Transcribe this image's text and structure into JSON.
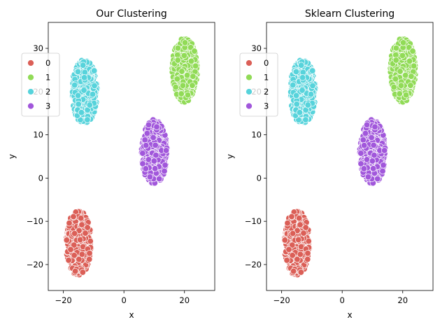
{
  "chart_data": [
    {
      "type": "scatter",
      "title": "Our Clustering",
      "xlabel": "x",
      "ylabel": "y",
      "xlim": [
        -25,
        30
      ],
      "ylim": [
        -26,
        36
      ],
      "xticks": [
        -20,
        0,
        20
      ],
      "yticks": [
        -20,
        -10,
        0,
        10,
        20,
        30
      ],
      "grid": false,
      "legend_position": "upper-left",
      "legend": [
        "0",
        "1",
        "2",
        "3"
      ],
      "clusters": [
        {
          "label": "0",
          "color": "#db5f57",
          "center": [
            -15,
            -15
          ],
          "spread": [
            4.2,
            7.5
          ]
        },
        {
          "label": "1",
          "color": "#91db57",
          "center": [
            20,
            25
          ],
          "spread": [
            4.2,
            7.5
          ]
        },
        {
          "label": "2",
          "color": "#57d3db",
          "center": [
            -13,
            20
          ],
          "spread": [
            4.2,
            7.5
          ]
        },
        {
          "label": "3",
          "color": "#a157db",
          "center": [
            10,
            6
          ],
          "spread": [
            4.2,
            7.5
          ]
        }
      ]
    },
    {
      "type": "scatter",
      "title": "Sklearn Clustering",
      "xlabel": "x",
      "ylabel": "y",
      "xlim": [
        -25,
        30
      ],
      "ylim": [
        -26,
        36
      ],
      "xticks": [
        -20,
        0,
        20
      ],
      "yticks": [
        -20,
        -10,
        0,
        10,
        20,
        30
      ],
      "grid": false,
      "legend_position": "upper-left",
      "legend": [
        "0",
        "1",
        "2",
        "3"
      ],
      "clusters": [
        {
          "label": "0",
          "color": "#db5f57",
          "center": [
            -15,
            -15
          ],
          "spread": [
            4.2,
            7.5
          ]
        },
        {
          "label": "1",
          "color": "#91db57",
          "center": [
            20,
            25
          ],
          "spread": [
            4.2,
            7.5
          ]
        },
        {
          "label": "2",
          "color": "#57d3db",
          "center": [
            -13,
            20
          ],
          "spread": [
            4.2,
            7.5
          ]
        },
        {
          "label": "3",
          "color": "#a157db",
          "center": [
            10,
            6
          ],
          "spread": [
            4.2,
            7.5
          ]
        }
      ]
    }
  ]
}
